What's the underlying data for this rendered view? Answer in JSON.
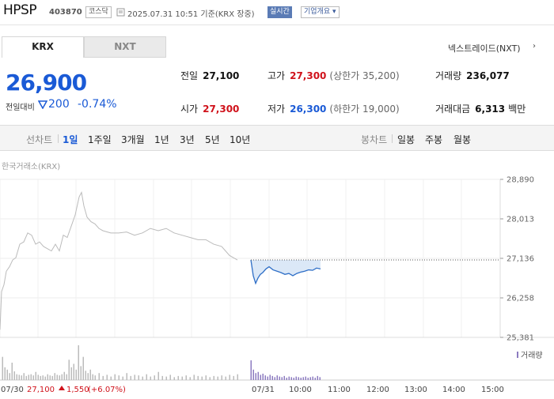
{
  "header": {
    "name": "HPSP",
    "code": "403870",
    "market": "코스닥",
    "time": "2025.07.31 10:51 기준(KRX 장중)",
    "realtime_label": "실시간",
    "company_info_label": "기업개요 ▾"
  },
  "exchange_tabs": [
    "KRX",
    "NXT"
  ],
  "nxt_label": "넥스트레이드(NXT)",
  "price": {
    "current": "26,900",
    "change_label": "전일대비",
    "change": "200",
    "change_pct": "-0.74%"
  },
  "stats": {
    "prev_close_label": "전일",
    "prev_close": "27,100",
    "high_label": "고가",
    "high": "27,300",
    "upper_limit": "(상한가 35,200)",
    "volume_label": "거래량",
    "volume": "236,077",
    "open_label": "시가",
    "open": "27,300",
    "low_label": "저가",
    "low": "26,300",
    "lower_limit": "(하한가 19,000)",
    "amount_label": "거래대금",
    "amount": "6,313",
    "amount_unit": "백만"
  },
  "period_bar": {
    "line_label": "선차트",
    "periods": [
      "1일",
      "1주일",
      "3개월",
      "1년",
      "3년",
      "5년",
      "10년"
    ],
    "candle_label": "봉차트",
    "candle_periods": [
      "일봉",
      "주봉",
      "월봉"
    ]
  },
  "source_label": "한국거래소(KRX)",
  "colors": {
    "accent_blue": "#1a5ad6",
    "up_red": "#d0121b",
    "prev_line": "#bbbbbb",
    "today_line": "#2f6fc7",
    "volume_bar": "#bbbbbb",
    "today_volume_bar": "#8c7bc0"
  },
  "chart_data": {
    "type": "line",
    "title": "",
    "ylim": [
      25381,
      28890
    ],
    "y_ticks": [
      "28,890",
      "28,013",
      "27,136",
      "26,258",
      "25,381"
    ],
    "x_ticks": [
      "07/30",
      "07/31",
      "10:00",
      "11:00",
      "12:00",
      "13:00",
      "14:00",
      "15:00"
    ],
    "reference_line": 27100,
    "prev_day_summary": {
      "date": "07/30",
      "close": "27,100",
      "change": "1,550",
      "change_pct": "(+6.07%)"
    },
    "volume_label": "거래량",
    "series": [
      {
        "name": "07/30",
        "x": [
          0,
          2,
          5,
          8,
          12,
          16,
          20,
          25,
          30,
          35,
          40,
          45,
          50,
          55,
          60,
          65,
          70,
          75,
          80,
          85,
          90,
          95,
          100,
          103,
          106,
          110,
          115,
          120,
          125,
          130,
          140,
          150,
          160,
          170,
          180,
          190,
          200,
          210,
          220,
          230,
          240,
          250,
          260,
          270,
          280,
          285,
          290,
          295,
          300
        ],
        "values": [
          25550,
          26400,
          26550,
          26850,
          26950,
          27100,
          27150,
          27450,
          27500,
          27700,
          27650,
          27450,
          27500,
          27400,
          27350,
          27300,
          27450,
          27300,
          27650,
          27600,
          27850,
          28100,
          28500,
          28600,
          28300,
          28050,
          27950,
          27900,
          27800,
          27750,
          27700,
          27700,
          27720,
          27650,
          27700,
          27800,
          27750,
          27800,
          27700,
          27650,
          27600,
          27550,
          27550,
          27450,
          27400,
          27300,
          27200,
          27150,
          27100
        ]
      },
      {
        "name": "07/31",
        "x": [
          317,
          320,
          323,
          326,
          329,
          332,
          336,
          340,
          345,
          350,
          355,
          360,
          365,
          370,
          375,
          380,
          385,
          390,
          395,
          400,
          405
        ],
        "values": [
          27100,
          26750,
          26580,
          26700,
          26780,
          26820,
          26900,
          26950,
          26880,
          26850,
          26820,
          26780,
          26800,
          26750,
          26800,
          26830,
          26850,
          26880,
          26870,
          26920,
          26900
        ]
      }
    ],
    "volume": {
      "x_prev": [
        3,
        6,
        9,
        12,
        15,
        18,
        21,
        24,
        27,
        30,
        33,
        36,
        39,
        42,
        45,
        48,
        51,
        54,
        57,
        60,
        63,
        66,
        69,
        72,
        75,
        78,
        81,
        84,
        87,
        90,
        93,
        96,
        99,
        102,
        105,
        108,
        111,
        114,
        117,
        120,
        125,
        130,
        135,
        140,
        145,
        150,
        155,
        160,
        165,
        170,
        175,
        180,
        185,
        190,
        195,
        200,
        205,
        210,
        215,
        220,
        225,
        230,
        235,
        240,
        245,
        250,
        255,
        260,
        265,
        270,
        275,
        280,
        285,
        290,
        295,
        300
      ],
      "values_prev": [
        40,
        22,
        18,
        12,
        30,
        15,
        10,
        9,
        8,
        12,
        7,
        9,
        10,
        8,
        14,
        9,
        7,
        8,
        6,
        10,
        8,
        7,
        12,
        9,
        8,
        10,
        14,
        10,
        35,
        22,
        28,
        18,
        60,
        24,
        40,
        16,
        12,
        18,
        10,
        8,
        12,
        7,
        9,
        6,
        10,
        8,
        6,
        12,
        7,
        9,
        8,
        6,
        10,
        6,
        8,
        14,
        7,
        6,
        9,
        5,
        7,
        6,
        8,
        5,
        9,
        7,
        6,
        8,
        5,
        7,
        6,
        8,
        6,
        9,
        7,
        10
      ],
      "x_today": [
        317,
        320,
        323,
        326,
        329,
        332,
        335,
        338,
        341,
        344,
        347,
        350,
        353,
        356,
        359,
        362,
        365,
        368,
        371,
        374,
        377,
        380,
        383,
        386,
        389,
        392,
        395,
        398,
        401,
        404
      ],
      "values_today": [
        34,
        18,
        12,
        14,
        9,
        11,
        8,
        6,
        9,
        7,
        5,
        8,
        6,
        5,
        7,
        4,
        6,
        5,
        4,
        6,
        5,
        4,
        5,
        6,
        4,
        5,
        6,
        4,
        7,
        5
      ]
    }
  }
}
